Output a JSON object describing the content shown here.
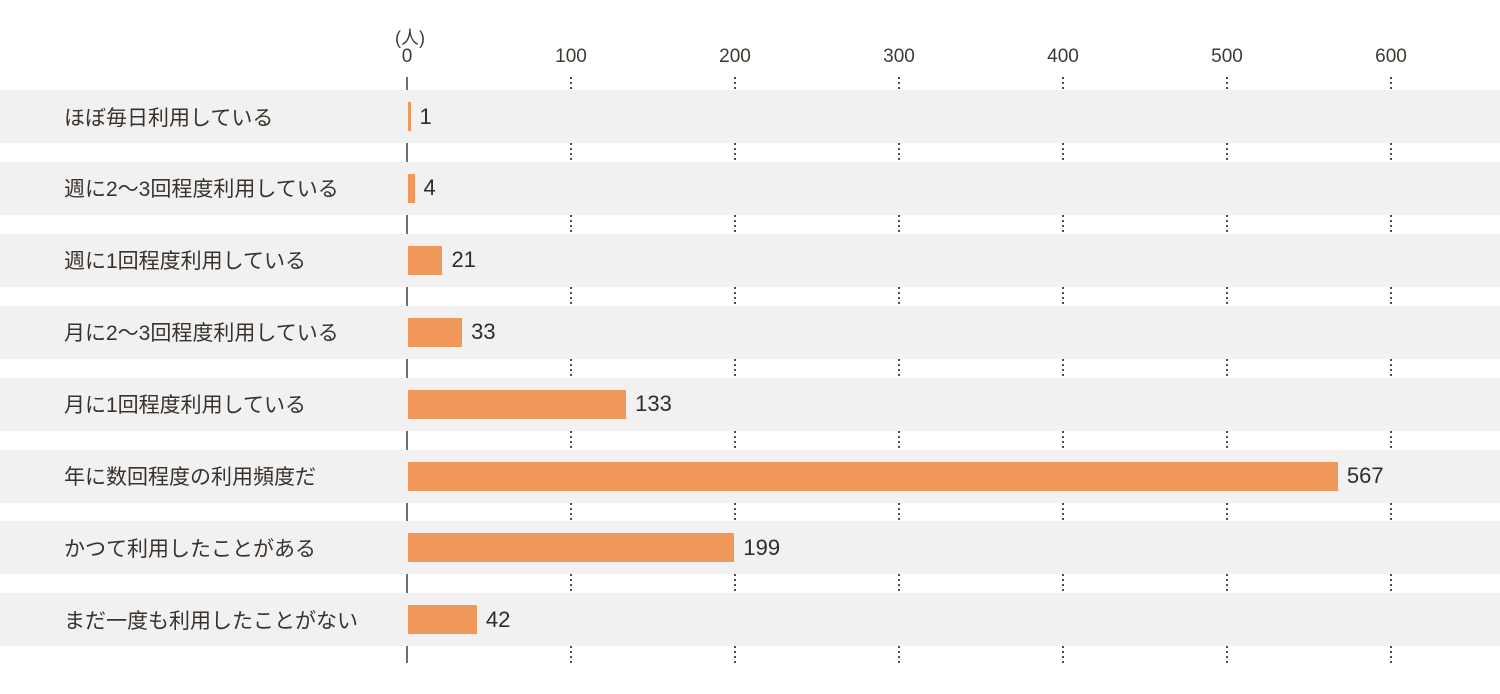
{
  "chart_data": {
    "type": "bar",
    "orientation": "horizontal",
    "title": "",
    "unit_label": "(人)",
    "categories": [
      "ほぼ毎日利用している",
      "週に2〜3回程度利用している",
      "週に1回程度利用している",
      "月に2〜3回程度利用している",
      "月に1回程度利用している",
      "年に数回程度の利用頻度だ",
      "かつて利用したことがある",
      "まだ一度も利用したことがない"
    ],
    "values": [
      1,
      4,
      21,
      33,
      133,
      567,
      199,
      42
    ],
    "value_labels": [
      "1",
      "4",
      "21",
      "33",
      "133",
      "567",
      "199",
      "42"
    ],
    "x_ticks": [
      0,
      100,
      200,
      300,
      400,
      500,
      600
    ],
    "xlim": [
      0,
      600
    ],
    "xlabel": "",
    "ylabel": "",
    "legend": null,
    "grid": "dotted-vertical-in-row-gaps",
    "value_labels_shown": true,
    "colors": {
      "bar": "#f1975a",
      "row_band": "#f1f1f1",
      "axis_line": "#6e6e6e",
      "grid_dots": "#4c4c4c",
      "category_text": "#3a322c",
      "value_text": "#322b26",
      "tick_text": "#3f3933"
    }
  }
}
